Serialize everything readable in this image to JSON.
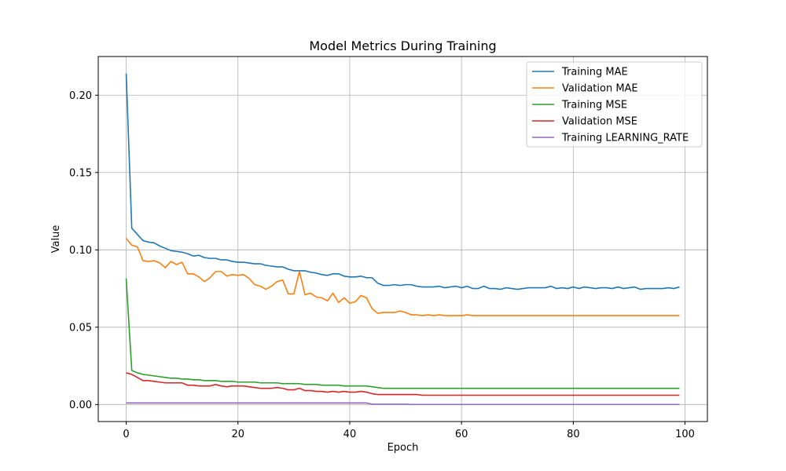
{
  "chart_data": {
    "type": "line",
    "title": "Model Metrics During Training",
    "xlabel": "Epoch",
    "ylabel": "Value",
    "xlim": [
      -5,
      104
    ],
    "ylim": [
      -0.011,
      0.225
    ],
    "xticks": [
      0,
      20,
      40,
      60,
      80,
      100
    ],
    "xtick_labels": [
      "0",
      "20",
      "40",
      "60",
      "80",
      "100"
    ],
    "yticks": [
      0.0,
      0.05,
      0.1,
      0.15,
      0.2
    ],
    "ytick_labels": [
      "0.00",
      "0.05",
      "0.10",
      "0.15",
      "0.20"
    ],
    "grid": true,
    "legend_position": "top-right",
    "series": [
      {
        "name": "Training MAE",
        "color": "#1f77b4",
        "values": [
          0.214,
          0.114,
          0.11,
          0.106,
          0.105,
          0.1045,
          0.1025,
          0.101,
          0.0995,
          0.099,
          0.0985,
          0.0975,
          0.096,
          0.0965,
          0.095,
          0.0945,
          0.0945,
          0.0935,
          0.0935,
          0.0925,
          0.092,
          0.092,
          0.0915,
          0.091,
          0.091,
          0.09,
          0.0895,
          0.089,
          0.089,
          0.0875,
          0.0865,
          0.0865,
          0.0865,
          0.0855,
          0.085,
          0.084,
          0.0835,
          0.0845,
          0.0845,
          0.083,
          0.0825,
          0.0825,
          0.083,
          0.082,
          0.082,
          0.0785,
          0.077,
          0.077,
          0.0775,
          0.077,
          0.0775,
          0.0775,
          0.0765,
          0.076,
          0.076,
          0.076,
          0.0765,
          0.0755,
          0.076,
          0.0765,
          0.0755,
          0.0765,
          0.075,
          0.075,
          0.0765,
          0.075,
          0.075,
          0.0745,
          0.0755,
          0.075,
          0.0745,
          0.075,
          0.0755,
          0.0755,
          0.0755,
          0.0755,
          0.0765,
          0.075,
          0.0755,
          0.075,
          0.076,
          0.075,
          0.076,
          0.0755,
          0.075,
          0.0755,
          0.0755,
          0.075,
          0.076,
          0.075,
          0.0755,
          0.076,
          0.0745,
          0.075,
          0.075,
          0.075,
          0.075,
          0.0755,
          0.075,
          0.076
        ]
      },
      {
        "name": "Validation MAE",
        "color": "#ff7f0e",
        "values": [
          0.1075,
          0.103,
          0.102,
          0.093,
          0.0925,
          0.093,
          0.0915,
          0.0885,
          0.0925,
          0.0905,
          0.092,
          0.0845,
          0.0845,
          0.0825,
          0.0795,
          0.082,
          0.086,
          0.086,
          0.083,
          0.084,
          0.0835,
          0.084,
          0.0815,
          0.0775,
          0.0765,
          0.0745,
          0.0765,
          0.0795,
          0.0805,
          0.0715,
          0.0715,
          0.086,
          0.071,
          0.072,
          0.0695,
          0.069,
          0.067,
          0.072,
          0.066,
          0.069,
          0.0655,
          0.0665,
          0.0705,
          0.069,
          0.062,
          0.059,
          0.0595,
          0.0595,
          0.0595,
          0.0605,
          0.0595,
          0.058,
          0.058,
          0.0575,
          0.058,
          0.0575,
          0.058,
          0.0575,
          0.0575,
          0.0575,
          0.0575,
          0.058,
          0.0575,
          0.0575,
          0.0575,
          0.0575,
          0.0575,
          0.0575,
          0.0575,
          0.0575,
          0.0575,
          0.0575,
          0.0575,
          0.0575,
          0.0575,
          0.0575,
          0.0575,
          0.0575,
          0.0575,
          0.0575,
          0.0575,
          0.0575,
          0.0575,
          0.0575,
          0.0575,
          0.0575,
          0.0575,
          0.0575,
          0.0575,
          0.0575,
          0.0575,
          0.0575,
          0.0575,
          0.0575,
          0.0575,
          0.0575,
          0.0575,
          0.0575,
          0.0575,
          0.0575
        ]
      },
      {
        "name": "Training MSE",
        "color": "#2ca02c",
        "values": [
          0.0815,
          0.022,
          0.0205,
          0.0195,
          0.019,
          0.0185,
          0.018,
          0.0175,
          0.017,
          0.017,
          0.0165,
          0.0165,
          0.016,
          0.016,
          0.0155,
          0.0155,
          0.0155,
          0.015,
          0.015,
          0.015,
          0.0145,
          0.0145,
          0.0145,
          0.0145,
          0.014,
          0.014,
          0.014,
          0.014,
          0.0135,
          0.0135,
          0.0135,
          0.0135,
          0.013,
          0.013,
          0.013,
          0.0125,
          0.0125,
          0.0125,
          0.0125,
          0.012,
          0.012,
          0.012,
          0.012,
          0.012,
          0.0115,
          0.011,
          0.0105,
          0.0105,
          0.0105,
          0.0105,
          0.0105,
          0.0105,
          0.0105,
          0.0105,
          0.0105,
          0.0105,
          0.0105,
          0.0105,
          0.0105,
          0.0105,
          0.0105,
          0.0105,
          0.0105,
          0.0105,
          0.0105,
          0.0105,
          0.0105,
          0.0105,
          0.0105,
          0.0105,
          0.0105,
          0.0105,
          0.0105,
          0.0105,
          0.0105,
          0.0105,
          0.0105,
          0.0105,
          0.0105,
          0.0105,
          0.0105,
          0.0105,
          0.0105,
          0.0105,
          0.0105,
          0.0105,
          0.0105,
          0.0105,
          0.0105,
          0.0105,
          0.0105,
          0.0105,
          0.0105,
          0.0105,
          0.0105,
          0.0105,
          0.0105,
          0.0105,
          0.0105,
          0.0105
        ]
      },
      {
        "name": "Validation MSE",
        "color": "#d62728",
        "values": [
          0.0205,
          0.0195,
          0.0175,
          0.0155,
          0.0155,
          0.015,
          0.0145,
          0.014,
          0.014,
          0.014,
          0.014,
          0.0125,
          0.0125,
          0.012,
          0.012,
          0.012,
          0.013,
          0.012,
          0.0115,
          0.012,
          0.012,
          0.012,
          0.0115,
          0.011,
          0.0105,
          0.0105,
          0.0105,
          0.011,
          0.0105,
          0.0095,
          0.0095,
          0.0105,
          0.009,
          0.009,
          0.0085,
          0.0085,
          0.008,
          0.0085,
          0.008,
          0.0085,
          0.008,
          0.008,
          0.0085,
          0.008,
          0.007,
          0.0065,
          0.0065,
          0.0065,
          0.0065,
          0.0065,
          0.0065,
          0.0065,
          0.0065,
          0.006,
          0.006,
          0.006,
          0.006,
          0.006,
          0.006,
          0.006,
          0.006,
          0.006,
          0.006,
          0.006,
          0.006,
          0.006,
          0.006,
          0.006,
          0.006,
          0.006,
          0.006,
          0.006,
          0.006,
          0.006,
          0.006,
          0.006,
          0.006,
          0.006,
          0.006,
          0.006,
          0.006,
          0.006,
          0.006,
          0.006,
          0.006,
          0.006,
          0.006,
          0.006,
          0.006,
          0.006,
          0.006,
          0.006,
          0.006,
          0.006,
          0.006,
          0.006,
          0.006,
          0.006,
          0.006,
          0.006
        ]
      },
      {
        "name": "Training LEARNING_RATE",
        "color": "#9467bd",
        "values": [
          0.001,
          0.001,
          0.001,
          0.001,
          0.001,
          0.001,
          0.001,
          0.001,
          0.001,
          0.001,
          0.001,
          0.001,
          0.001,
          0.001,
          0.001,
          0.001,
          0.001,
          0.001,
          0.001,
          0.001,
          0.001,
          0.001,
          0.001,
          0.001,
          0.001,
          0.001,
          0.001,
          0.001,
          0.001,
          0.001,
          0.001,
          0.001,
          0.001,
          0.001,
          0.001,
          0.001,
          0.001,
          0.001,
          0.001,
          0.001,
          0.001,
          0.001,
          0.001,
          0.001,
          0.0002,
          0.0002,
          0.0002,
          0.0002,
          0.0002,
          0.0002,
          0.0002,
          4e-05,
          4e-05,
          4e-05,
          4e-05,
          4e-05,
          4e-05,
          4e-05,
          4e-05,
          4e-05,
          4e-05,
          4e-05,
          4e-05,
          4e-05,
          4e-05,
          4e-05,
          4e-05,
          4e-05,
          4e-05,
          4e-05,
          4e-05,
          4e-05,
          4e-05,
          4e-05,
          4e-05,
          4e-05,
          4e-05,
          4e-05,
          4e-05,
          4e-05,
          4e-05,
          4e-05,
          4e-05,
          4e-05,
          4e-05,
          4e-05,
          4e-05,
          4e-05,
          4e-05,
          4e-05,
          4e-05,
          4e-05,
          4e-05,
          4e-05,
          4e-05,
          4e-05,
          4e-05,
          4e-05,
          4e-05,
          4e-05
        ]
      }
    ]
  }
}
